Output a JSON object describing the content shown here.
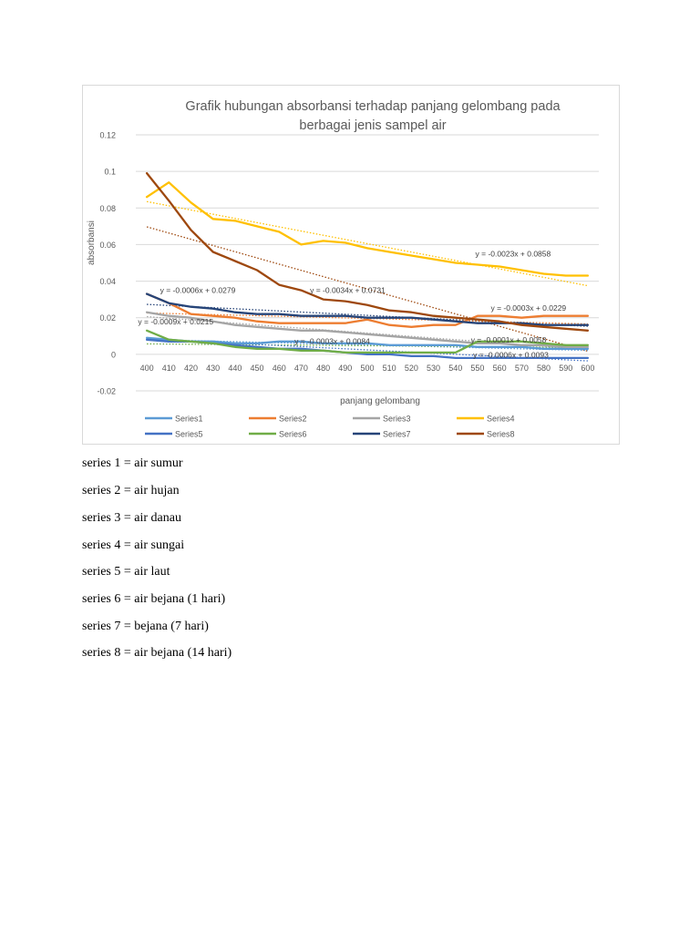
{
  "chart_data": {
    "type": "line",
    "title_lines": [
      "Grafik hubungan absorbansi terhadap panjang gelombang  pada",
      "berbagai jenis sampel air"
    ],
    "xlabel": "panjang gelombang",
    "ylabel": "absorbansi",
    "categories": [
      400,
      410,
      420,
      430,
      440,
      450,
      460,
      470,
      480,
      490,
      500,
      510,
      520,
      530,
      540,
      550,
      560,
      570,
      580,
      590,
      600
    ],
    "ylim": [
      -0.02,
      0.12
    ],
    "yticks": [
      -0.02,
      0,
      0.02,
      0.04,
      0.06,
      0.08,
      0.1,
      0.12
    ],
    "ytick_labels": [
      "-0.02",
      "0",
      "0.02",
      "0.04",
      "0.06",
      "0.08",
      "0.1",
      "0.12"
    ],
    "grid": true,
    "legend_position": "bottom",
    "series": [
      {
        "name": "Series1",
        "color": "#5b9bd5",
        "values": [
          0.009,
          0.008,
          0.007,
          0.007,
          0.006,
          0.006,
          0.007,
          0.007,
          0.006,
          0.006,
          0.006,
          0.005,
          0.005,
          0.005,
          0.005,
          0.004,
          0.004,
          0.004,
          0.003,
          0.003,
          0.003
        ]
      },
      {
        "name": "Series2",
        "color": "#ed7d31",
        "values": [
          0.033,
          0.028,
          0.022,
          0.021,
          0.02,
          0.018,
          0.017,
          0.017,
          0.017,
          0.017,
          0.019,
          0.016,
          0.015,
          0.016,
          0.016,
          0.021,
          0.021,
          0.02,
          0.021,
          0.021,
          0.021
        ]
      },
      {
        "name": "Series3",
        "color": "#a5a5a5",
        "values": [
          0.023,
          0.021,
          0.02,
          0.018,
          0.016,
          0.015,
          0.014,
          0.013,
          0.013,
          0.012,
          0.011,
          0.01,
          0.009,
          0.008,
          0.007,
          0.006,
          0.006,
          0.005,
          0.005,
          0.004,
          0.004
        ]
      },
      {
        "name": "Series4",
        "color": "#ffc000",
        "values": [
          0.086,
          0.094,
          0.083,
          0.074,
          0.073,
          0.07,
          0.067,
          0.06,
          0.062,
          0.061,
          0.058,
          0.056,
          0.054,
          0.052,
          0.05,
          0.049,
          0.048,
          0.046,
          0.044,
          0.043,
          0.043
        ]
      },
      {
        "name": "Series5",
        "color": "#4472c4",
        "values": [
          0.008,
          0.007,
          0.007,
          0.006,
          0.005,
          0.004,
          0.003,
          0.003,
          0.002,
          0.001,
          0.0,
          0.0,
          -0.001,
          -0.001,
          -0.002,
          -0.002,
          -0.002,
          -0.002,
          -0.002,
          -0.002,
          -0.002
        ]
      },
      {
        "name": "Series6",
        "color": "#70ad47",
        "values": [
          0.013,
          0.008,
          0.007,
          0.006,
          0.004,
          0.003,
          0.003,
          0.002,
          0.002,
          0.001,
          0.001,
          0.001,
          0.001,
          0.001,
          0.001,
          0.007,
          0.007,
          0.007,
          0.006,
          0.005,
          0.005
        ]
      },
      {
        "name": "Series7",
        "color": "#264478",
        "values": [
          0.033,
          0.028,
          0.026,
          0.025,
          0.023,
          0.022,
          0.022,
          0.021,
          0.021,
          0.021,
          0.02,
          0.02,
          0.02,
          0.019,
          0.018,
          0.017,
          0.017,
          0.017,
          0.016,
          0.016,
          0.016
        ]
      },
      {
        "name": "Series8",
        "color": "#9e480e",
        "values": [
          0.099,
          0.084,
          0.068,
          0.056,
          0.051,
          0.046,
          0.038,
          0.035,
          0.03,
          0.029,
          0.027,
          0.024,
          0.023,
          0.021,
          0.02,
          0.019,
          0.018,
          0.016,
          0.015,
          0.014,
          0.013
        ]
      }
    ],
    "trendlines": [
      {
        "series": "Series4",
        "color": "#ffc000",
        "start": 0.0835,
        "end": 0.0375,
        "label": "y = -0.0023x + 0.0858",
        "anchor": [
          0.0276,
          0.055
        ]
      },
      {
        "series": "Series8",
        "color": "#9e480e",
        "start": 0.0697,
        "end": 0.0017,
        "label": "y = -0.0034x + 0.0731",
        "anchor": [
          0.0279,
          0.035
        ]
      },
      {
        "series": "Series7",
        "color": "#264478",
        "start": 0.0273,
        "end": 0.0153,
        "label": "y = -0.0006x + 0.0279",
        "anchor": [
          0.0183,
          0.035
        ]
      },
      {
        "series": "Series2",
        "color": "#ed7d31",
        "start": 0.0226,
        "end": 0.0166,
        "label": "y = -0.0003x + 0.0229",
        "anchor": [
          0.0276,
          0.0253
        ]
      },
      {
        "series": "Series3",
        "color": "#a5a5a5",
        "start": 0.0206,
        "end": 0.0026,
        "label": "y = -0.0009x + 0.0215",
        "anchor": [
          0.0186,
          0.0179
        ]
      },
      {
        "series": "Series1",
        "color": "#5b9bd5",
        "start": 0.0081,
        "end": 0.0021,
        "label": "y = -0.0003x + 0.0084",
        "anchor": [
          0.0233,
          0.0072
        ]
      },
      {
        "series": "Series6",
        "color": "#70ad47",
        "start": 0.0057,
        "end": 0.0037,
        "label": "y = -0.0001x + 0.0058",
        "anchor": [
          0.0261,
          0.008
        ]
      },
      {
        "series": "Series5",
        "color": "#4472c4",
        "start": 0.0084,
        "end": -0.0036,
        "label": "y = -0.0006x + 0.0093",
        "anchor": [
          0.0263,
          -0.0003
        ]
      }
    ]
  },
  "captions": [
    "series 1 = air sumur",
    "series 2 = air hujan",
    "series 3 = air danau",
    "series 4 = air sungai",
    "series 5 = air laut",
    "series 6 = air bejana (1 hari)",
    "series 7 = bejana (7 hari)",
    "series 8 = air bejana (14 hari)"
  ]
}
